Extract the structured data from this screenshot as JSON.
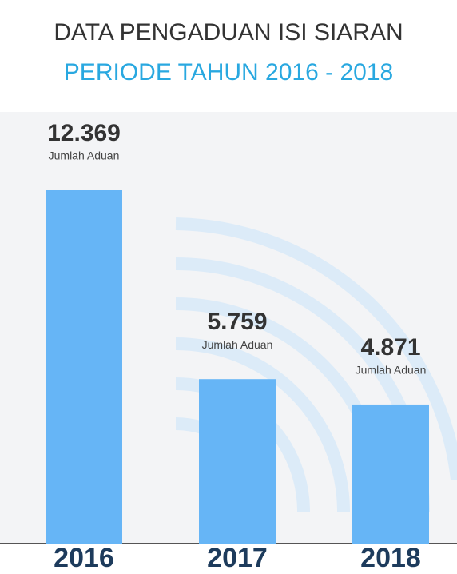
{
  "chart_data": {
    "type": "bar",
    "title": "DATA PENGADUAN ISI SIARAN",
    "subtitle": "PERIODE TAHUN 2016 - 2018",
    "categories": [
      "2016",
      "2017",
      "2018"
    ],
    "values": [
      12369,
      5759,
      4871
    ],
    "value_labels": [
      "12.369",
      "5.759",
      "4.871"
    ],
    "value_unit": "Jumlah Aduan",
    "color": "#66b5f6"
  }
}
